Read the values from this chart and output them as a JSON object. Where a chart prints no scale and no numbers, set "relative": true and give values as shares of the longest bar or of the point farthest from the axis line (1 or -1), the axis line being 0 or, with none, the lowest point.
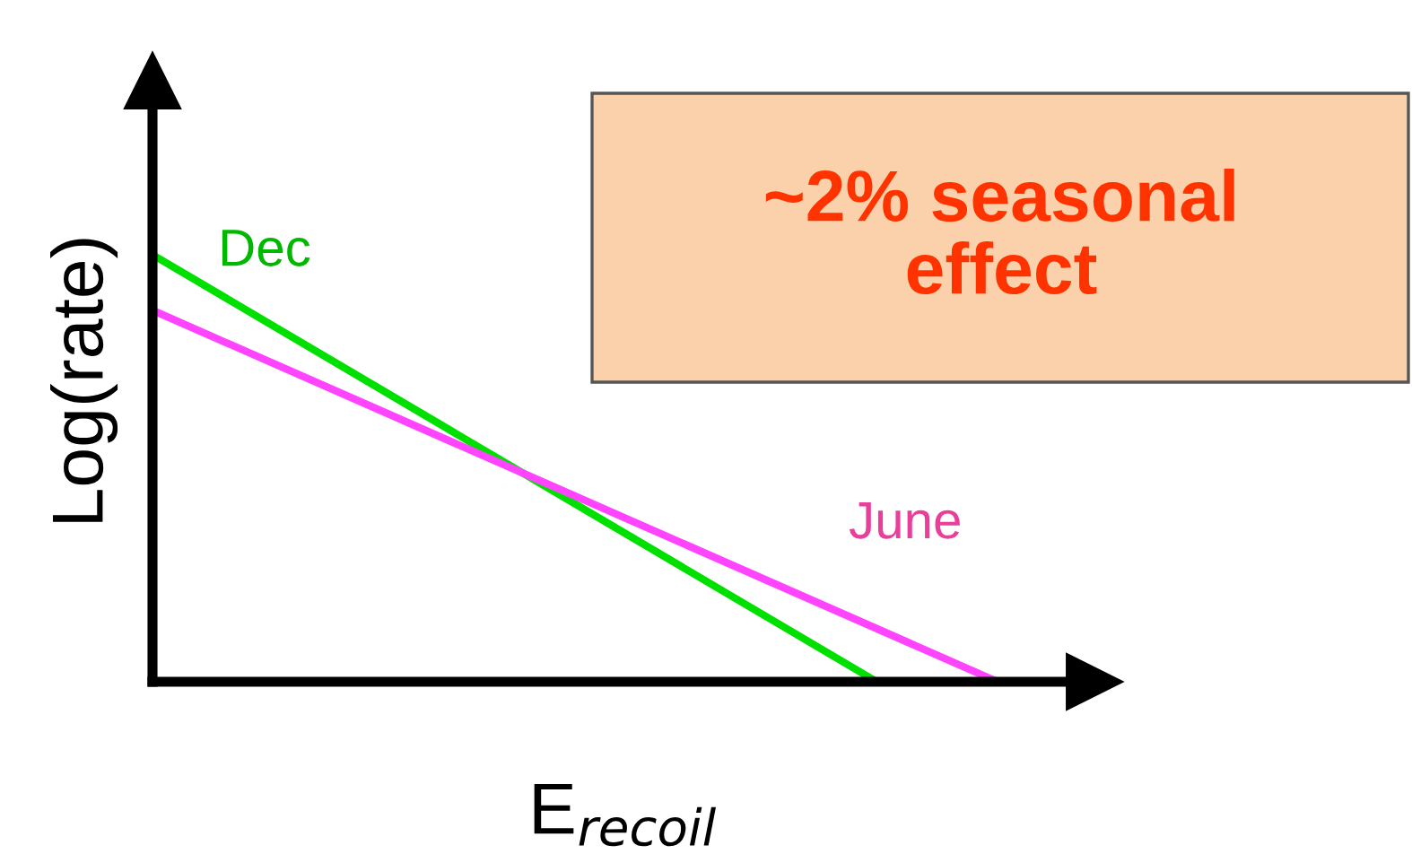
{
  "chart_data": {
    "type": "line",
    "relative": true,
    "xlabel": "E$_{recoil}$",
    "ylabel": "Log(rate)",
    "categories": [
      null,
      null,
      null,
      null,
      null,
      null,
      null,
      null
    ],
    "series": [
      {
        "name": "Dec",
        "color": "#00e000",
        "values": [
          1,
          null,
          null,
          null,
          null,
          null,
          0,
          null
        ]
      },
      {
        "name": "June",
        "color": "#ff44ff",
        "values": [
          0.87,
          null,
          null,
          null,
          null,
          null,
          null,
          0
        ]
      }
    ],
    "annotations": [
      "~2% seasonal\neffect"
    ],
    "legend": false,
    "marker": "none",
    "line_style": "solid"
  }
}
